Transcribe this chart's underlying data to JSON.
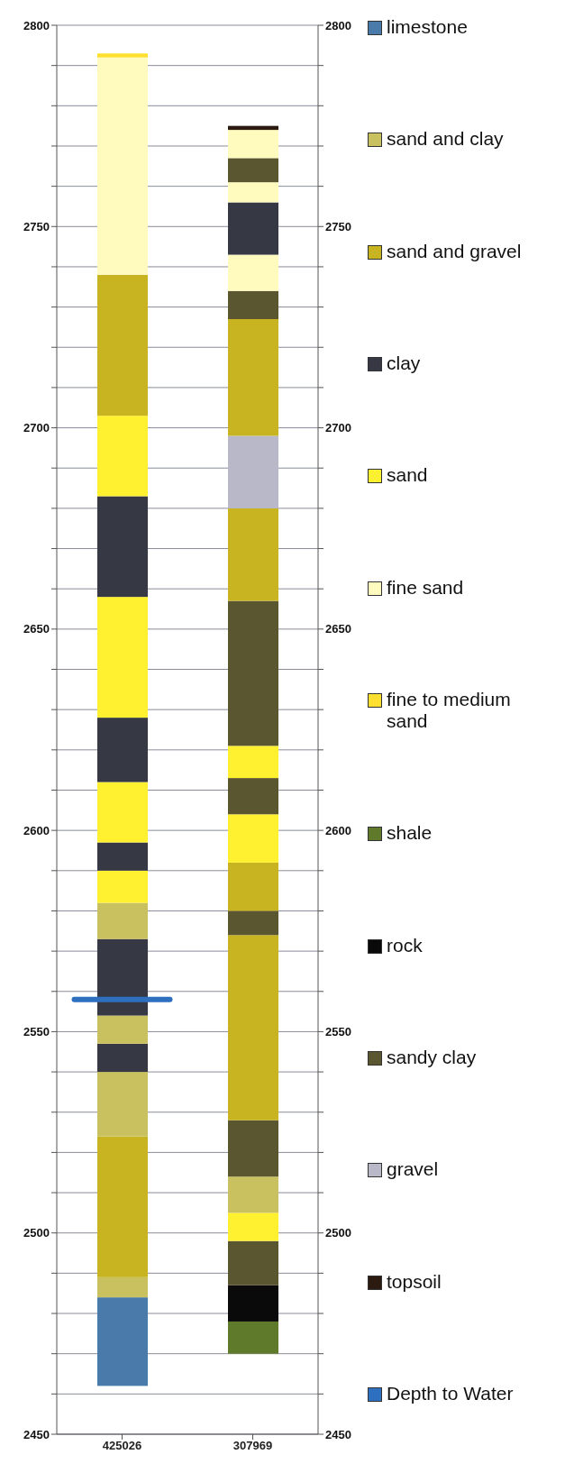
{
  "chart_data": {
    "type": "bar",
    "categories": [
      "425026",
      "307969"
    ],
    "ylim": [
      2450,
      2800
    ],
    "yticks": [
      2450,
      {
        "value": 2460,
        "label": null
      },
      {
        "value": 2470,
        "label": null
      },
      {
        "value": 2480,
        "label": null
      },
      {
        "value": 2490,
        "label": null
      },
      2500,
      {
        "value": 2510,
        "label": null
      },
      {
        "value": 2520,
        "label": null
      },
      {
        "value": 2530,
        "label": null
      },
      {
        "value": 2540,
        "label": null
      },
      2550,
      {
        "value": 2560,
        "label": null
      },
      {
        "value": 2570,
        "label": null
      },
      {
        "value": 2580,
        "label": null
      },
      {
        "value": 2590,
        "label": null
      },
      2600,
      {
        "value": 2610,
        "label": null
      },
      {
        "value": 2620,
        "label": null
      },
      {
        "value": 2630,
        "label": null
      },
      {
        "value": 2640,
        "label": null
      },
      2650,
      {
        "value": 2660,
        "label": null
      },
      {
        "value": 2670,
        "label": null
      },
      {
        "value": 2680,
        "label": null
      },
      {
        "value": 2690,
        "label": null
      },
      2700,
      {
        "value": 2710,
        "label": null
      },
      {
        "value": 2720,
        "label": null
      },
      {
        "value": 2730,
        "label": null
      },
      {
        "value": 2740,
        "label": null
      },
      2750,
      {
        "value": 2760,
        "label": null
      },
      {
        "value": 2770,
        "label": null
      },
      {
        "value": 2780,
        "label": null
      },
      {
        "value": 2790,
        "label": null
      },
      2800
    ],
    "y2lim": [
      2450,
      2800
    ],
    "y2ticks": [
      2450,
      {
        "value": 2460,
        "label": null
      },
      {
        "value": 2470,
        "label": null
      },
      {
        "value": 2480,
        "label": null
      },
      {
        "value": 2490,
        "label": null
      },
      2500,
      {
        "value": 2510,
        "label": null
      },
      {
        "value": 2520,
        "label": null
      },
      {
        "value": 2530,
        "label": null
      },
      {
        "value": 2540,
        "label": null
      },
      2550,
      {
        "value": 2560,
        "label": null
      },
      {
        "value": 2570,
        "label": null
      },
      {
        "value": 2580,
        "label": null
      },
      {
        "value": 2590,
        "label": null
      },
      2600,
      {
        "value": 2610,
        "label": null
      },
      {
        "value": 2620,
        "label": null
      },
      {
        "value": 2630,
        "label": null
      },
      {
        "value": 2640,
        "label": null
      },
      2650,
      {
        "value": 2660,
        "label": null
      },
      {
        "value": 2670,
        "label": null
      },
      {
        "value": 2680,
        "label": null
      },
      {
        "value": 2690,
        "label": null
      },
      2700,
      {
        "value": 2710,
        "label": null
      },
      {
        "value": 2720,
        "label": null
      },
      {
        "value": 2730,
        "label": null
      },
      {
        "value": 2740,
        "label": null
      },
      2750,
      {
        "value": 2760,
        "label": null
      },
      {
        "value": 2770,
        "label": null
      },
      {
        "value": 2780,
        "label": null
      },
      {
        "value": 2790,
        "label": null
      },
      2800
    ],
    "grid": "y",
    "legend": "right",
    "series": [
      {
        "name": "limestone",
        "color": "#4a7aaa",
        "base": [
          2462,
          null
        ],
        "values": [
          22,
          null
        ]
      },
      {
        "name": "sand and clay",
        "color": "#c9c060",
        "base": [
          2484,
          null
        ],
        "values": [
          5,
          null
        ]
      },
      {
        "name": "sand and gravel",
        "color": "#c8b420",
        "base": [
          2489,
          null
        ],
        "values": [
          35,
          null
        ]
      },
      {
        "color": "#c9c060",
        "base": [
          2524,
          null
        ],
        "values": [
          16,
          null
        ]
      },
      {
        "name": "clay",
        "color": "#363844",
        "base": [
          2540,
          null
        ],
        "values": [
          7,
          null
        ]
      },
      {
        "color": "#c9c060",
        "base": [
          2547,
          null
        ],
        "values": [
          7,
          null
        ]
      },
      {
        "color": "#363844",
        "base": [
          2554,
          null
        ],
        "values": [
          19,
          null
        ]
      },
      {
        "color": "#c9c060",
        "base": [
          2573,
          null
        ],
        "values": [
          9,
          null
        ]
      },
      {
        "name": "sand",
        "color": "#fff030",
        "base": [
          2582,
          null
        ],
        "values": [
          8,
          null
        ]
      },
      {
        "color": "#363844",
        "base": [
          2590,
          null
        ],
        "values": [
          7,
          null
        ]
      },
      {
        "color": "#fff030",
        "base": [
          2597,
          null
        ],
        "values": [
          15,
          null
        ]
      },
      {
        "color": "#363844",
        "base": [
          2612,
          null
        ],
        "values": [
          16,
          null
        ]
      },
      {
        "color": "#fff030",
        "base": [
          2628,
          null
        ],
        "values": [
          30,
          null
        ]
      },
      {
        "color": "#363844",
        "base": [
          2658,
          null
        ],
        "values": [
          25,
          null
        ]
      },
      {
        "color": "#fff030",
        "base": [
          2683,
          null
        ],
        "values": [
          20,
          null
        ]
      },
      {
        "color": "#c8b420",
        "base": [
          2703,
          null
        ],
        "values": [
          35,
          null
        ]
      },
      {
        "name": "fine sand",
        "color": "#fffbbf",
        "base": [
          2738,
          null
        ],
        "values": [
          54,
          null
        ]
      },
      {
        "name": "fine to medium sand",
        "color": "#ffe030",
        "base": [
          2792,
          null
        ],
        "values": [
          1,
          null
        ]
      },
      {
        "name": "shale",
        "color": "#5e7a2a",
        "base": [
          null,
          2470
        ],
        "values": [
          null,
          8
        ]
      },
      {
        "name": "rock",
        "color": "#0a0a0a",
        "base": [
          null,
          2478
        ],
        "values": [
          null,
          9
        ]
      },
      {
        "name": "sandy clay",
        "color": "#5a5630",
        "base": [
          null,
          2487
        ],
        "values": [
          null,
          11
        ]
      },
      {
        "color": "#fff030",
        "base": [
          null,
          2498
        ],
        "values": [
          null,
          7
        ]
      },
      {
        "color": "#c9c060",
        "base": [
          null,
          2505
        ],
        "values": [
          null,
          9
        ]
      },
      {
        "color": "#5a5630",
        "base": [
          null,
          2514
        ],
        "values": [
          null,
          14
        ]
      },
      {
        "color": "#c8b420",
        "base": [
          null,
          2528
        ],
        "values": [
          null,
          46
        ]
      },
      {
        "color": "#5a5630",
        "base": [
          null,
          2574
        ],
        "values": [
          null,
          6
        ]
      },
      {
        "color": "#c8b420",
        "base": [
          null,
          2580
        ],
        "values": [
          null,
          12
        ]
      },
      {
        "color": "#fff030",
        "base": [
          null,
          2592
        ],
        "values": [
          null,
          12
        ]
      },
      {
        "color": "#5a5630",
        "base": [
          null,
          2604
        ],
        "values": [
          null,
          9
        ]
      },
      {
        "color": "#fff030",
        "base": [
          null,
          2613
        ],
        "values": [
          null,
          8
        ]
      },
      {
        "color": "#5a5630",
        "base": [
          null,
          2621
        ],
        "values": [
          null,
          36
        ]
      },
      {
        "color": "#c8b420",
        "base": [
          null,
          2657
        ],
        "values": [
          null,
          23
        ]
      },
      {
        "name": "gravel",
        "color": "#b8b8c8",
        "base": [
          null,
          2680
        ],
        "values": [
          null,
          18
        ]
      },
      {
        "color": "#c8b420",
        "base": [
          null,
          2698
        ],
        "values": [
          null,
          29
        ]
      },
      {
        "color": "#5a5630",
        "base": [
          null,
          2727
        ],
        "values": [
          null,
          7
        ]
      },
      {
        "color": "#fffbbf",
        "base": [
          null,
          2734
        ],
        "values": [
          null,
          9
        ]
      },
      {
        "color": "#363844",
        "base": [
          null,
          2743
        ],
        "values": [
          null,
          13
        ]
      },
      {
        "color": "#fffbbf",
        "base": [
          null,
          2756
        ],
        "values": [
          null,
          5
        ]
      },
      {
        "color": "#5a5630",
        "base": [
          null,
          2761
        ],
        "values": [
          null,
          6
        ]
      },
      {
        "color": "#fffbbf",
        "base": [
          null,
          2767
        ],
        "values": [
          null,
          7
        ]
      },
      {
        "name": "topsoil",
        "color": "#2b1a10",
        "base": [
          null,
          2774
        ],
        "values": [
          null,
          1
        ]
      }
    ],
    "ref_lines": [
      {
        "axis": "y",
        "value": 2558,
        "label": "Depth to Water",
        "color": "#2f6fc0"
      }
    ]
  }
}
